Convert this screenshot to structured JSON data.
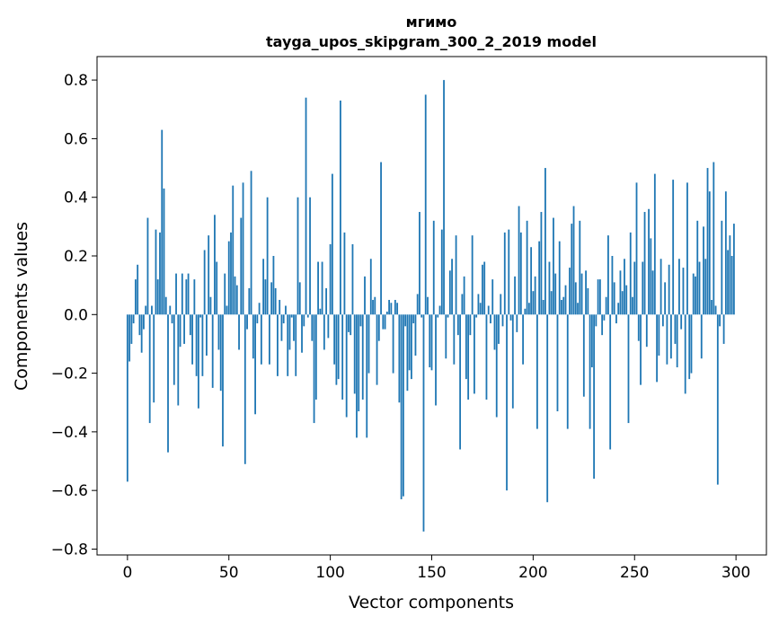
{
  "colors": {
    "bar": "#1f77b4",
    "axis": "#000000",
    "background": "#ffffff"
  },
  "chart_data": {
    "type": "bar",
    "title": [
      "мгимо",
      "tayga_upos_skipgram_300_2_2019 model"
    ],
    "xlabel": "Vector components",
    "ylabel": "Components values",
    "xlim": [
      -15,
      315
    ],
    "ylim": [
      -0.82,
      0.88
    ],
    "xticks": [
      0,
      50,
      100,
      150,
      200,
      250,
      300
    ],
    "xtick_labels": [
      "0",
      "50",
      "100",
      "150",
      "200",
      "250",
      "300"
    ],
    "yticks": [
      -0.8,
      -0.6,
      -0.4,
      -0.2,
      0.0,
      0.2,
      0.4,
      0.6,
      0.8
    ],
    "ytick_labels": [
      "−0.8",
      "−0.6",
      "−0.4",
      "−0.2",
      "0.0",
      "0.2",
      "0.4",
      "0.6",
      "0.8"
    ],
    "grid": false,
    "legend": "none",
    "x_start": 0,
    "values": [
      -0.57,
      -0.16,
      -0.1,
      -0.03,
      0.12,
      0.17,
      -0.07,
      -0.13,
      -0.05,
      0.03,
      0.33,
      -0.37,
      0.03,
      -0.3,
      0.29,
      0.12,
      0.28,
      0.63,
      0.43,
      0.06,
      -0.47,
      0.03,
      -0.03,
      -0.24,
      0.14,
      -0.31,
      -0.11,
      0.14,
      -0.1,
      0.12,
      0.14,
      -0.07,
      -0.17,
      0.12,
      -0.21,
      -0.32,
      -0.01,
      -0.21,
      0.22,
      -0.14,
      0.27,
      0.06,
      -0.25,
      0.34,
      0.18,
      -0.12,
      -0.26,
      -0.45,
      0.14,
      0.03,
      0.25,
      0.28,
      0.44,
      0.13,
      0.1,
      -0.12,
      0.33,
      0.45,
      -0.51,
      -0.05,
      0.09,
      0.49,
      -0.15,
      -0.34,
      -0.03,
      0.04,
      -0.17,
      0.19,
      0.12,
      0.4,
      -0.17,
      0.11,
      0.2,
      0.09,
      -0.21,
      0.05,
      -0.09,
      -0.03,
      0.03,
      -0.21,
      -0.12,
      -0.01,
      -0.09,
      -0.21,
      0.4,
      0.11,
      -0.13,
      -0.04,
      0.74,
      -0.01,
      0.4,
      -0.09,
      -0.37,
      -0.29,
      0.18,
      0.02,
      0.18,
      -0.12,
      0.09,
      -0.08,
      0.24,
      0.48,
      -0.17,
      -0.24,
      -0.22,
      0.73,
      -0.29,
      0.28,
      -0.35,
      -0.06,
      -0.07,
      0.24,
      -0.27,
      -0.42,
      -0.33,
      -0.04,
      -0.29,
      0.13,
      -0.42,
      -0.2,
      0.19,
      0.05,
      0.06,
      -0.24,
      -0.09,
      0.52,
      -0.05,
      -0.05,
      0.01,
      0.05,
      0.04,
      -0.2,
      0.05,
      0.04,
      -0.3,
      -0.63,
      -0.62,
      -0.04,
      -0.26,
      -0.19,
      -0.22,
      -0.03,
      -0.14,
      0.07,
      0.35,
      -0.01,
      -0.74,
      0.75,
      0.06,
      -0.18,
      -0.19,
      0.32,
      -0.31,
      -0.01,
      0.03,
      0.29,
      0.8,
      -0.15,
      -0.01,
      0.15,
      0.19,
      -0.17,
      0.27,
      -0.07,
      -0.46,
      0.07,
      0.13,
      -0.22,
      -0.29,
      -0.07,
      0.27,
      -0.27,
      -0.01,
      0.07,
      0.04,
      0.17,
      0.18,
      -0.29,
      0.03,
      -0.03,
      0.12,
      -0.12,
      -0.35,
      -0.1,
      0.07,
      -0.04,
      0.28,
      -0.6,
      0.29,
      -0.02,
      -0.32,
      0.13,
      -0.06,
      0.37,
      0.28,
      -0.17,
      0.02,
      0.32,
      0.04,
      0.23,
      0.08,
      0.13,
      -0.39,
      0.25,
      0.35,
      0.05,
      0.5,
      -0.64,
      0.18,
      0.08,
      0.33,
      0.14,
      -0.33,
      0.25,
      0.05,
      0.06,
      0.1,
      -0.39,
      0.16,
      0.31,
      0.37,
      0.11,
      0.04,
      0.32,
      0.14,
      -0.28,
      0.15,
      0.09,
      -0.39,
      -0.18,
      -0.56,
      -0.04,
      0.12,
      0.12,
      -0.07,
      -0.02,
      0.06,
      0.27,
      -0.46,
      0.2,
      0.11,
      -0.03,
      0.04,
      0.15,
      0.08,
      0.19,
      0.1,
      -0.37,
      0.28,
      0.06,
      0.18,
      0.45,
      -0.09,
      -0.24,
      0.18,
      0.35,
      -0.11,
      0.36,
      0.26,
      0.15,
      0.48,
      -0.23,
      -0.14,
      0.19,
      -0.04,
      0.11,
      -0.17,
      0.17,
      -0.15,
      0.46,
      -0.1,
      -0.18,
      0.19,
      -0.05,
      0.16,
      -0.27,
      0.45,
      -0.22,
      -0.2,
      0.14,
      0.13,
      0.32,
      0.18,
      -0.15,
      0.3,
      0.19,
      0.5,
      0.42,
      0.05,
      0.52,
      0.03,
      -0.58,
      -0.04,
      0.32,
      -0.1,
      0.42,
      0.22,
      0.27,
      0.2,
      0.31
    ]
  }
}
